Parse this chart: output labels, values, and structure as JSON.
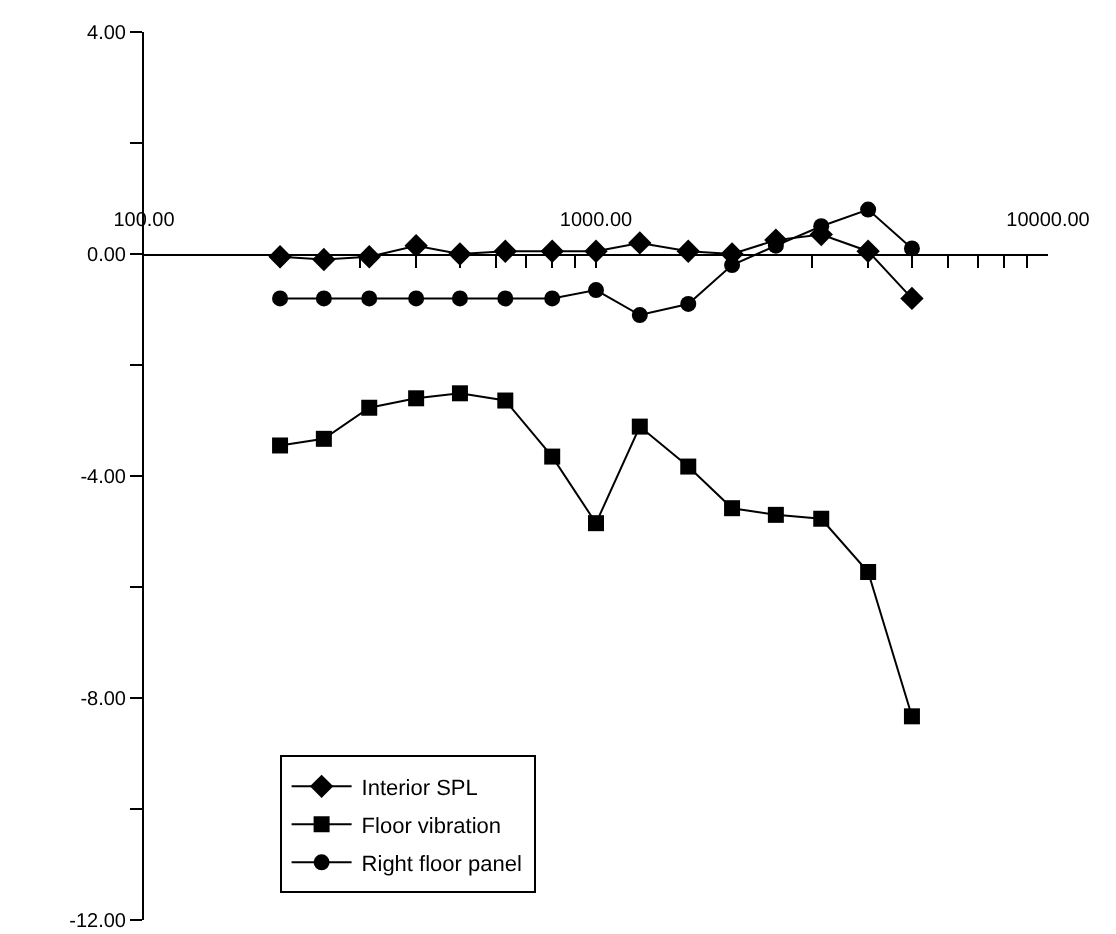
{
  "chart_data": {
    "type": "line",
    "x": [
      200,
      250,
      315,
      400,
      500,
      630,
      800,
      1000,
      1250,
      1600,
      2000,
      2500,
      3150,
      4000,
      5000
    ],
    "series": [
      {
        "name": "Interior SPL",
        "color": "#000000",
        "marker": "diamond",
        "values": [
          -0.05,
          -0.1,
          -0.05,
          0.15,
          0.0,
          0.05,
          0.05,
          0.05,
          0.2,
          0.05,
          0.0,
          0.25,
          0.35,
          0.05,
          -0.8
        ]
      },
      {
        "name": "Floor vibration",
        "color": "#000000",
        "marker": "square",
        "values": [
          -3.45,
          -3.33,
          -2.77,
          -2.6,
          -2.51,
          -2.64,
          -3.65,
          -4.85,
          -3.11,
          -3.83,
          -4.58,
          -4.7,
          -4.77,
          -5.73,
          -8.33
        ]
      },
      {
        "name": "Right floor panel",
        "color": "#000000",
        "marker": "circle",
        "values": [
          -0.8,
          -0.8,
          -0.8,
          -0.8,
          -0.8,
          -0.8,
          -0.8,
          -0.65,
          -1.1,
          -0.9,
          -0.2,
          0.15,
          0.5,
          0.8,
          0.1
        ]
      }
    ],
    "log": "x",
    "xlim": [
      100,
      10000
    ],
    "xticks": [
      {
        "value": 100,
        "label": "100.00"
      },
      {
        "value": 200,
        "label": null
      },
      {
        "value": 300,
        "label": null
      },
      {
        "value": 400,
        "label": null
      },
      {
        "value": 500,
        "label": null
      },
      {
        "value": 600,
        "label": null
      },
      {
        "value": 700,
        "label": null
      },
      {
        "value": 800,
        "label": null
      },
      {
        "value": 900,
        "label": null
      },
      {
        "value": 1000,
        "label": "1000.00"
      },
      {
        "value": 2000,
        "label": null
      },
      {
        "value": 3000,
        "label": null
      },
      {
        "value": 4000,
        "label": null
      },
      {
        "value": 5000,
        "label": null
      },
      {
        "value": 6000,
        "label": null
      },
      {
        "value": 7000,
        "label": null
      },
      {
        "value": 8000,
        "label": null
      },
      {
        "value": 9000,
        "label": null
      },
      {
        "value": 10000,
        "label": "10000.00"
      }
    ],
    "ylim": [
      -12,
      4
    ],
    "yticks": [
      {
        "value": 4,
        "label": "4.00"
      },
      {
        "value": 2,
        "label": null
      },
      {
        "value": 0,
        "label": "0.00"
      },
      {
        "value": -2,
        "label": null
      },
      {
        "value": -4,
        "label": "-4.00"
      },
      {
        "value": -6,
        "label": null
      },
      {
        "value": -8,
        "label": "-8.00"
      },
      {
        "value": -10,
        "label": null
      },
      {
        "value": -12,
        "label": "-12.00"
      }
    ],
    "grid": false,
    "legend": "bottom left",
    "line_style": "solid"
  }
}
